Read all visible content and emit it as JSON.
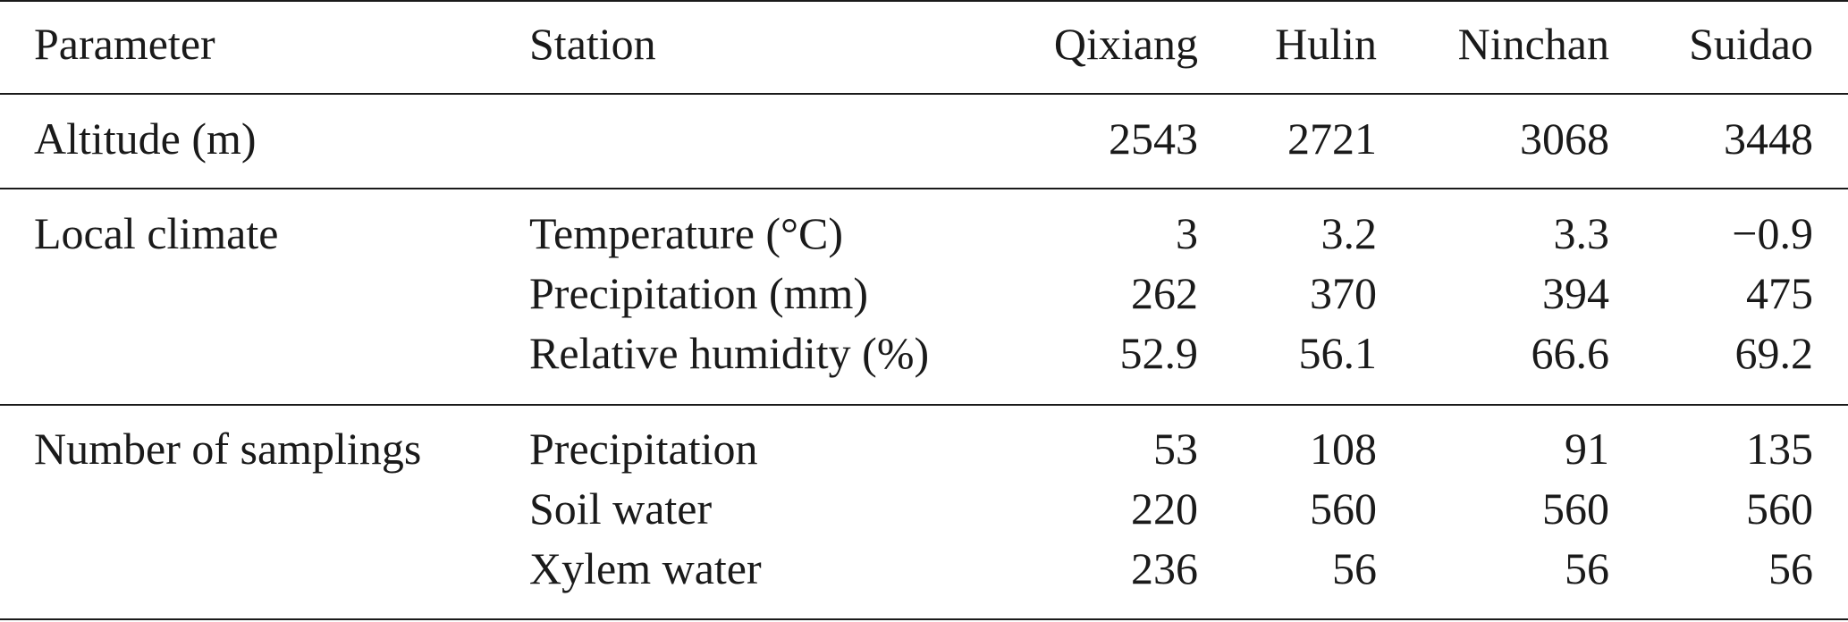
{
  "table": {
    "headers": {
      "parameter": "Parameter",
      "station": "Station",
      "stations": [
        "Qixiang",
        "Hulin",
        "Ninchan",
        "Suidao"
      ]
    },
    "altitude": {
      "label": "Altitude (m)",
      "values": [
        "2543",
        "2721",
        "3068",
        "3448"
      ]
    },
    "local_climate": {
      "label": "Local climate",
      "rows": [
        {
          "label": "Temperature (°C)",
          "values": [
            "3",
            "3.2",
            "3.3",
            "−0.9"
          ]
        },
        {
          "label": "Precipitation (mm)",
          "values": [
            "262",
            "370",
            "394",
            "475"
          ]
        },
        {
          "label": "Relative humidity (%)",
          "values": [
            "52.9",
            "56.1",
            "66.6",
            "69.2"
          ]
        }
      ]
    },
    "samplings": {
      "label": "Number of samplings",
      "rows": [
        {
          "label": "Precipitation",
          "values": [
            "53",
            "108",
            "91",
            "135"
          ]
        },
        {
          "label": "Soil water",
          "values": [
            "220",
            "560",
            "560",
            "560"
          ]
        },
        {
          "label": "Xylem water",
          "values": [
            "236",
            "56",
            "56",
            "56"
          ]
        }
      ]
    }
  }
}
